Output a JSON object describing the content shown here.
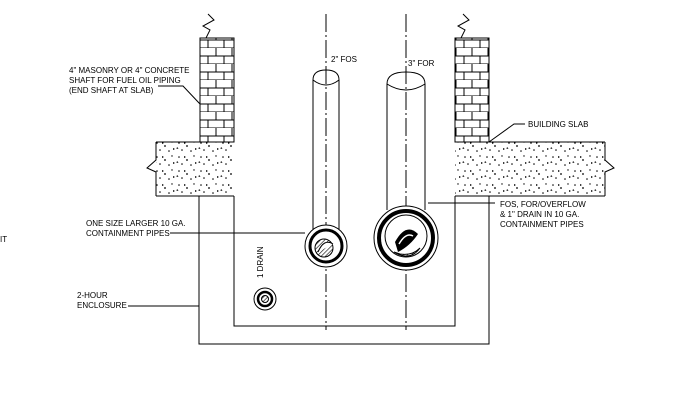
{
  "labels": {
    "shaft_line1": "4\" MASONRY OR 4\" CONCRETE",
    "shaft_line2": "SHAFT FOR FUEL OIL PIPING",
    "shaft_line3": "(END SHAFT AT SLAB)",
    "pipe_2in": "2\" FOS",
    "pipe_3in": "3\" FOR",
    "building_slab": "BUILDING SLAB",
    "containment_line1": "ONE SIZE LARGER 10 GA.",
    "containment_line2": "CONTAINMENT PIPES",
    "fos_line1": "FOS, FOR/OVERFLOW",
    "fos_line2": "& 1\" DRAIN IN 10 GA.",
    "fos_line3": "CONTAINMENT PIPES",
    "drain": "1 DRAIN",
    "enclosure_line1": "2-HOUR",
    "enclosure_line2": "ENCLOSURE",
    "edge_fragment": "IT"
  }
}
